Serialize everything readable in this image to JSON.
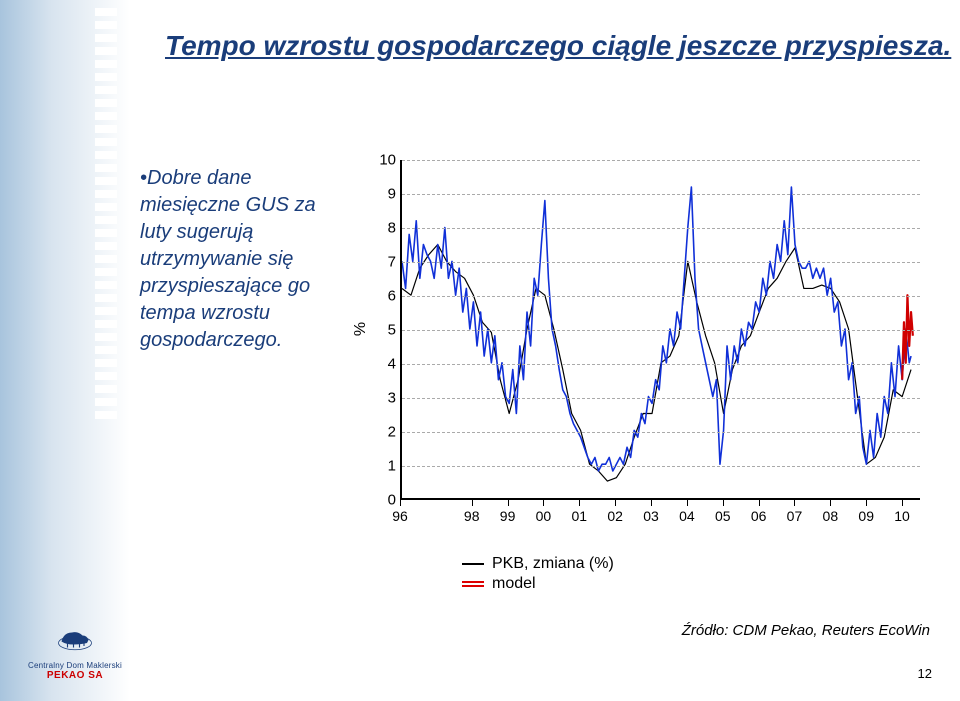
{
  "title": "Tempo wzrostu gospodarczego ciągle jeszcze przyspiesza.",
  "body_text": "•Dobre dane miesięczne GUS za luty sugerują utrzymywanie się przyspieszające go tempa wzrostu gospodarczego.",
  "chart": {
    "type": "line",
    "y_axis_label": "%",
    "ylim": [
      0,
      10
    ],
    "ytick_step": 1,
    "y_ticks": [
      0,
      1,
      2,
      3,
      4,
      5,
      6,
      7,
      8,
      9,
      10
    ],
    "x_labels": [
      "96",
      "98",
      "99",
      "00",
      "01",
      "02",
      "03",
      "04",
      "05",
      "06",
      "07",
      "08",
      "09",
      "10"
    ],
    "x_range": [
      1996,
      2010.5
    ],
    "grid_color": "#aaaaaa",
    "background_color": "#ffffff",
    "series": [
      {
        "name": "PKB, zmiana (%)",
        "color": "#000000",
        "width": 1.2,
        "points": [
          [
            1996.0,
            6.2
          ],
          [
            1996.25,
            6.0
          ],
          [
            1996.5,
            6.8
          ],
          [
            1996.75,
            7.2
          ],
          [
            1997.0,
            7.5
          ],
          [
            1997.25,
            7.0
          ],
          [
            1997.5,
            6.7
          ],
          [
            1997.75,
            6.5
          ],
          [
            1998.0,
            6.0
          ],
          [
            1998.25,
            5.2
          ],
          [
            1998.5,
            4.9
          ],
          [
            1998.75,
            3.5
          ],
          [
            1999.0,
            2.5
          ],
          [
            1999.25,
            3.5
          ],
          [
            1999.5,
            5.0
          ],
          [
            1999.75,
            6.2
          ],
          [
            2000.0,
            6.0
          ],
          [
            2000.25,
            5.0
          ],
          [
            2000.5,
            3.8
          ],
          [
            2000.75,
            2.5
          ],
          [
            2001.0,
            2.0
          ],
          [
            2001.25,
            1.0
          ],
          [
            2001.5,
            0.8
          ],
          [
            2001.75,
            0.5
          ],
          [
            2002.0,
            0.6
          ],
          [
            2002.25,
            1.0
          ],
          [
            2002.5,
            1.8
          ],
          [
            2002.75,
            2.5
          ],
          [
            2003.0,
            2.5
          ],
          [
            2003.25,
            4.0
          ],
          [
            2003.5,
            4.2
          ],
          [
            2003.75,
            4.8
          ],
          [
            2004.0,
            7.0
          ],
          [
            2004.25,
            5.8
          ],
          [
            2004.5,
            4.8
          ],
          [
            2004.75,
            4.0
          ],
          [
            2005.0,
            2.5
          ],
          [
            2005.25,
            3.8
          ],
          [
            2005.5,
            4.5
          ],
          [
            2005.75,
            4.8
          ],
          [
            2006.0,
            5.5
          ],
          [
            2006.25,
            6.2
          ],
          [
            2006.5,
            6.5
          ],
          [
            2006.75,
            7.0
          ],
          [
            2007.0,
            7.4
          ],
          [
            2007.25,
            6.2
          ],
          [
            2007.5,
            6.2
          ],
          [
            2007.75,
            6.3
          ],
          [
            2008.0,
            6.2
          ],
          [
            2008.25,
            5.8
          ],
          [
            2008.5,
            5.0
          ],
          [
            2008.75,
            3.0
          ],
          [
            2009.0,
            1.0
          ],
          [
            2009.25,
            1.2
          ],
          [
            2009.5,
            1.8
          ],
          [
            2009.75,
            3.2
          ],
          [
            2010.0,
            3.0
          ],
          [
            2010.25,
            3.8
          ]
        ]
      },
      {
        "name": "model_blue",
        "color": "#1030d8",
        "width": 1.6,
        "points": [
          [
            1996.0,
            7.0
          ],
          [
            1996.1,
            6.2
          ],
          [
            1996.2,
            7.8
          ],
          [
            1996.3,
            7.0
          ],
          [
            1996.4,
            8.2
          ],
          [
            1996.5,
            6.5
          ],
          [
            1996.6,
            7.5
          ],
          [
            1996.7,
            7.2
          ],
          [
            1996.8,
            7.0
          ],
          [
            1996.9,
            6.5
          ],
          [
            1997.0,
            7.5
          ],
          [
            1997.1,
            6.8
          ],
          [
            1997.2,
            8.0
          ],
          [
            1997.3,
            6.5
          ],
          [
            1997.4,
            7.0
          ],
          [
            1997.5,
            6.0
          ],
          [
            1997.6,
            6.8
          ],
          [
            1997.7,
            5.5
          ],
          [
            1997.8,
            6.2
          ],
          [
            1997.9,
            5.0
          ],
          [
            1998.0,
            5.8
          ],
          [
            1998.1,
            4.5
          ],
          [
            1998.2,
            5.5
          ],
          [
            1998.3,
            4.2
          ],
          [
            1998.4,
            5.0
          ],
          [
            1998.5,
            4.0
          ],
          [
            1998.6,
            4.8
          ],
          [
            1998.7,
            3.5
          ],
          [
            1998.8,
            4.0
          ],
          [
            1998.9,
            3.0
          ],
          [
            1999.0,
            2.8
          ],
          [
            1999.1,
            3.8
          ],
          [
            1999.2,
            2.5
          ],
          [
            1999.3,
            4.5
          ],
          [
            1999.4,
            3.5
          ],
          [
            1999.5,
            5.5
          ],
          [
            1999.6,
            4.5
          ],
          [
            1999.7,
            6.5
          ],
          [
            1999.8,
            6.0
          ],
          [
            1999.9,
            7.5
          ],
          [
            2000.0,
            8.8
          ],
          [
            2000.1,
            6.5
          ],
          [
            2000.2,
            5.0
          ],
          [
            2000.3,
            4.5
          ],
          [
            2000.4,
            3.8
          ],
          [
            2000.5,
            3.2
          ],
          [
            2000.6,
            3.0
          ],
          [
            2000.7,
            2.5
          ],
          [
            2000.8,
            2.2
          ],
          [
            2000.9,
            2.0
          ],
          [
            2001.0,
            1.8
          ],
          [
            2001.1,
            1.5
          ],
          [
            2001.2,
            1.2
          ],
          [
            2001.3,
            1.0
          ],
          [
            2001.4,
            1.2
          ],
          [
            2001.5,
            0.8
          ],
          [
            2001.6,
            1.0
          ],
          [
            2001.7,
            1.0
          ],
          [
            2001.8,
            1.2
          ],
          [
            2001.9,
            0.8
          ],
          [
            2002.0,
            1.0
          ],
          [
            2002.1,
            1.2
          ],
          [
            2002.2,
            1.0
          ],
          [
            2002.3,
            1.5
          ],
          [
            2002.4,
            1.2
          ],
          [
            2002.5,
            2.0
          ],
          [
            2002.6,
            1.8
          ],
          [
            2002.7,
            2.5
          ],
          [
            2002.8,
            2.2
          ],
          [
            2002.9,
            3.0
          ],
          [
            2003.0,
            2.8
          ],
          [
            2003.1,
            3.5
          ],
          [
            2003.2,
            3.2
          ],
          [
            2003.3,
            4.5
          ],
          [
            2003.4,
            4.0
          ],
          [
            2003.5,
            5.0
          ],
          [
            2003.6,
            4.5
          ],
          [
            2003.7,
            5.5
          ],
          [
            2003.8,
            5.0
          ],
          [
            2003.9,
            6.5
          ],
          [
            2004.0,
            8.0
          ],
          [
            2004.1,
            9.2
          ],
          [
            2004.2,
            6.5
          ],
          [
            2004.3,
            5.0
          ],
          [
            2004.4,
            4.5
          ],
          [
            2004.5,
            4.0
          ],
          [
            2004.6,
            3.5
          ],
          [
            2004.7,
            3.0
          ],
          [
            2004.8,
            3.5
          ],
          [
            2004.9,
            1.0
          ],
          [
            2005.0,
            2.0
          ],
          [
            2005.1,
            4.5
          ],
          [
            2005.2,
            3.5
          ],
          [
            2005.3,
            4.5
          ],
          [
            2005.4,
            4.0
          ],
          [
            2005.5,
            5.0
          ],
          [
            2005.6,
            4.5
          ],
          [
            2005.7,
            5.2
          ],
          [
            2005.8,
            5.0
          ],
          [
            2005.9,
            5.8
          ],
          [
            2006.0,
            5.5
          ],
          [
            2006.1,
            6.5
          ],
          [
            2006.2,
            6.0
          ],
          [
            2006.3,
            7.0
          ],
          [
            2006.4,
            6.5
          ],
          [
            2006.5,
            7.5
          ],
          [
            2006.6,
            7.0
          ],
          [
            2006.7,
            8.2
          ],
          [
            2006.8,
            7.2
          ],
          [
            2006.9,
            9.2
          ],
          [
            2007.0,
            7.5
          ],
          [
            2007.1,
            7.0
          ],
          [
            2007.2,
            6.8
          ],
          [
            2007.3,
            6.8
          ],
          [
            2007.4,
            7.0
          ],
          [
            2007.5,
            6.5
          ],
          [
            2007.6,
            6.8
          ],
          [
            2007.7,
            6.5
          ],
          [
            2007.8,
            6.8
          ],
          [
            2007.9,
            6.0
          ],
          [
            2008.0,
            6.5
          ],
          [
            2008.1,
            5.5
          ],
          [
            2008.2,
            5.8
          ],
          [
            2008.3,
            4.5
          ],
          [
            2008.4,
            5.0
          ],
          [
            2008.5,
            3.5
          ],
          [
            2008.6,
            4.0
          ],
          [
            2008.7,
            2.5
          ],
          [
            2008.8,
            3.0
          ],
          [
            2008.9,
            1.5
          ],
          [
            2009.0,
            1.0
          ],
          [
            2009.1,
            2.0
          ],
          [
            2009.2,
            1.2
          ],
          [
            2009.3,
            2.5
          ],
          [
            2009.4,
            1.8
          ],
          [
            2009.5,
            3.0
          ],
          [
            2009.6,
            2.5
          ],
          [
            2009.7,
            4.0
          ],
          [
            2009.8,
            3.0
          ],
          [
            2009.9,
            4.5
          ],
          [
            2010.0,
            3.5
          ],
          [
            2010.1,
            5.0
          ],
          [
            2010.2,
            4.0
          ],
          [
            2010.25,
            4.2
          ]
        ]
      },
      {
        "name": "model",
        "color": "#d00000",
        "width": 2.2,
        "points": [
          [
            2010.0,
            3.5
          ],
          [
            2010.05,
            5.2
          ],
          [
            2010.1,
            4.0
          ],
          [
            2010.15,
            6.0
          ],
          [
            2010.2,
            4.5
          ],
          [
            2010.25,
            5.5
          ],
          [
            2010.3,
            4.8
          ]
        ]
      }
    ],
    "legend": [
      {
        "label": "PKB, zmiana (%)",
        "swatch": "black"
      },
      {
        "label": "model",
        "swatch": "red"
      }
    ]
  },
  "source": "Źródło: CDM Pekao, Reuters EcoWin",
  "page_number": "12",
  "logo": {
    "line1": "Centralny Dom Maklerski",
    "line2": "PEKAO SA"
  }
}
